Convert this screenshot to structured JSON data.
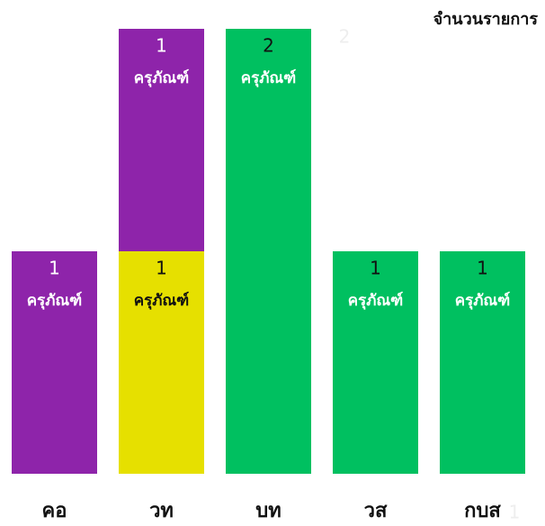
{
  "chart_data": {
    "type": "stacked_bar",
    "title": "จำนวนรายการ",
    "categories": [
      "คอ",
      "วท",
      "บท",
      "วส",
      "กบส"
    ],
    "unit_label": "ครุภัณฑ์",
    "series": [
      {
        "colors": [
          "#8e24aa",
          "#e6e000",
          "#00c060",
          "#00c060",
          "#00c060"
        ],
        "values": [
          1,
          1,
          2,
          1,
          1
        ]
      },
      {
        "color": "#8e24aa",
        "values": [
          null,
          1,
          null,
          null,
          null
        ]
      }
    ],
    "annotations": [
      "2",
      "1"
    ],
    "ylim": [
      0,
      2
    ]
  }
}
